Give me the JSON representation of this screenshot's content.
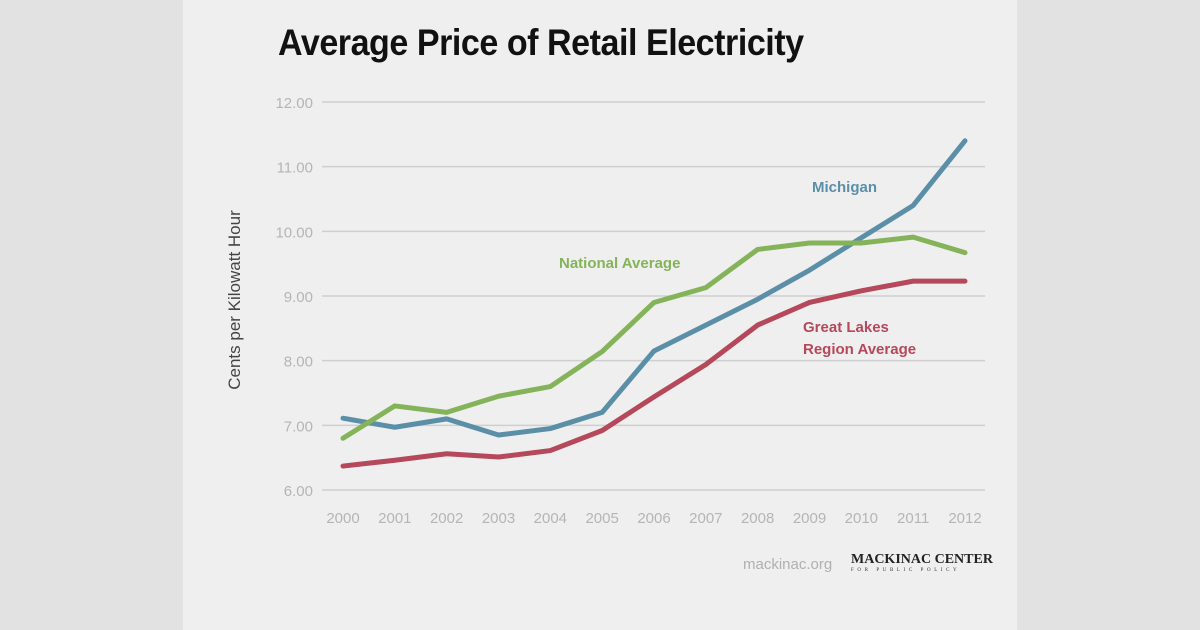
{
  "chart_data": {
    "type": "line",
    "title": "Average Price of Retail Electricity",
    "xlabel": "",
    "ylabel": "Cents per Kilowatt Hour",
    "x": [
      2000,
      2001,
      2002,
      2003,
      2004,
      2005,
      2006,
      2007,
      2008,
      2009,
      2010,
      2011,
      2012
    ],
    "ylim": [
      6,
      12
    ],
    "yticks": [
      "6.00",
      "7.00",
      "8.00",
      "9.00",
      "10.00",
      "11.00",
      "12.00"
    ],
    "grid": true,
    "legend": "inline labels",
    "series": [
      {
        "name": "Michigan",
        "color": "#5b8fa8",
        "values": [
          7.11,
          6.97,
          7.1,
          6.85,
          6.95,
          7.2,
          8.15,
          8.55,
          8.95,
          9.4,
          9.9,
          10.4,
          11.4
        ]
      },
      {
        "name": "National Average",
        "color": "#84b35a",
        "values": [
          6.8,
          7.3,
          7.2,
          7.45,
          7.6,
          8.14,
          8.9,
          9.13,
          9.72,
          9.82,
          9.82,
          9.91,
          9.67
        ]
      },
      {
        "name": "Great Lakes Region Average",
        "label_lines": [
          "Great Lakes",
          "Region Average"
        ],
        "color": "#b5485a",
        "values": [
          6.37,
          6.46,
          6.56,
          6.51,
          6.61,
          6.92,
          7.44,
          7.94,
          8.55,
          8.9,
          9.08,
          9.23,
          9.23
        ]
      }
    ]
  },
  "footer": {
    "site": "mackinac.org",
    "logo_main": "MACKINAC CENTER",
    "logo_sub": "FOR PUBLIC POLICY"
  }
}
